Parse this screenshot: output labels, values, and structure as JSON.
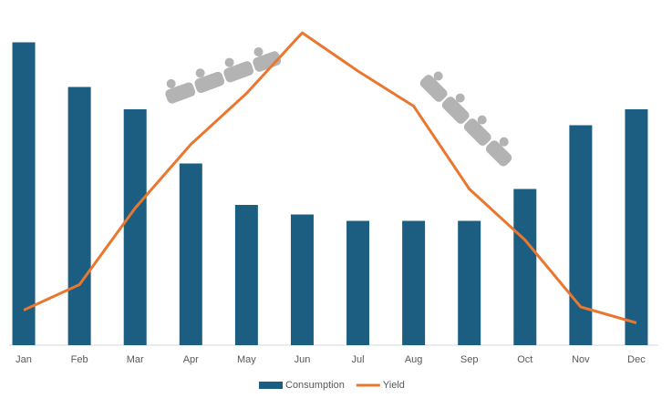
{
  "chart_data": {
    "type": "bar-line",
    "categories": [
      "Jan",
      "Feb",
      "Mar",
      "Apr",
      "May",
      "Jun",
      "Jul",
      "Aug",
      "Sep",
      "Oct",
      "Nov",
      "Dec"
    ],
    "series": [
      {
        "name": "Consumption",
        "type": "bar",
        "color": "#1b5e82",
        "values": [
          95,
          81,
          74,
          57,
          44,
          41,
          39,
          39,
          39,
          49,
          69,
          74
        ]
      },
      {
        "name": "Yield",
        "type": "line",
        "color": "#e9772f",
        "values": [
          11,
          19,
          43,
          63,
          79,
          98,
          86,
          75,
          49,
          33,
          12,
          7
        ]
      }
    ],
    "ylim": [
      0,
      100
    ],
    "legend": "bottom"
  }
}
